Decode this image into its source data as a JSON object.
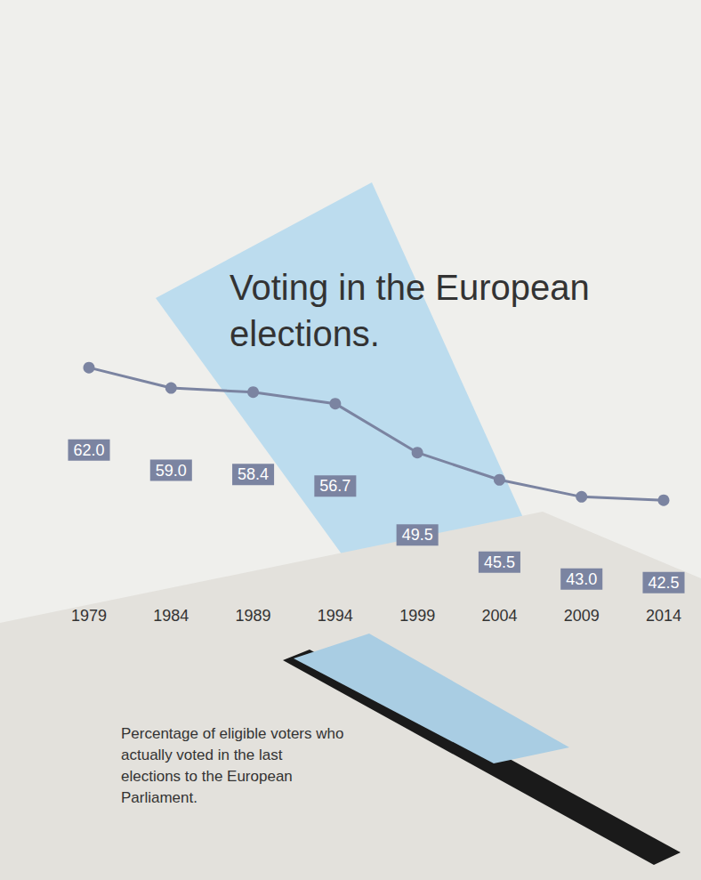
{
  "chart_data": {
    "type": "line",
    "title": "Voting in the European elections.",
    "annotations": [
      "Percentage of eligible voters who actually voted in the last elections to the European Parliament."
    ],
    "categories": [
      "1979",
      "1984",
      "1989",
      "1994",
      "1999",
      "2004",
      "2009",
      "2014"
    ],
    "values": [
      62,
      59,
      58.4,
      56.7,
      49.5,
      45.5,
      43,
      42.5
    ],
    "value_labels": [
      "62.0",
      "59.0",
      "58.4",
      "56.7",
      "49.5",
      "45.5",
      "43.0",
      "42.5"
    ],
    "color": "#7b84a1",
    "marker": "circle",
    "line_style": "solid",
    "ylim": [
      28,
      70
    ],
    "data_labels": true,
    "tick_labels": "x",
    "grid": false
  }
}
